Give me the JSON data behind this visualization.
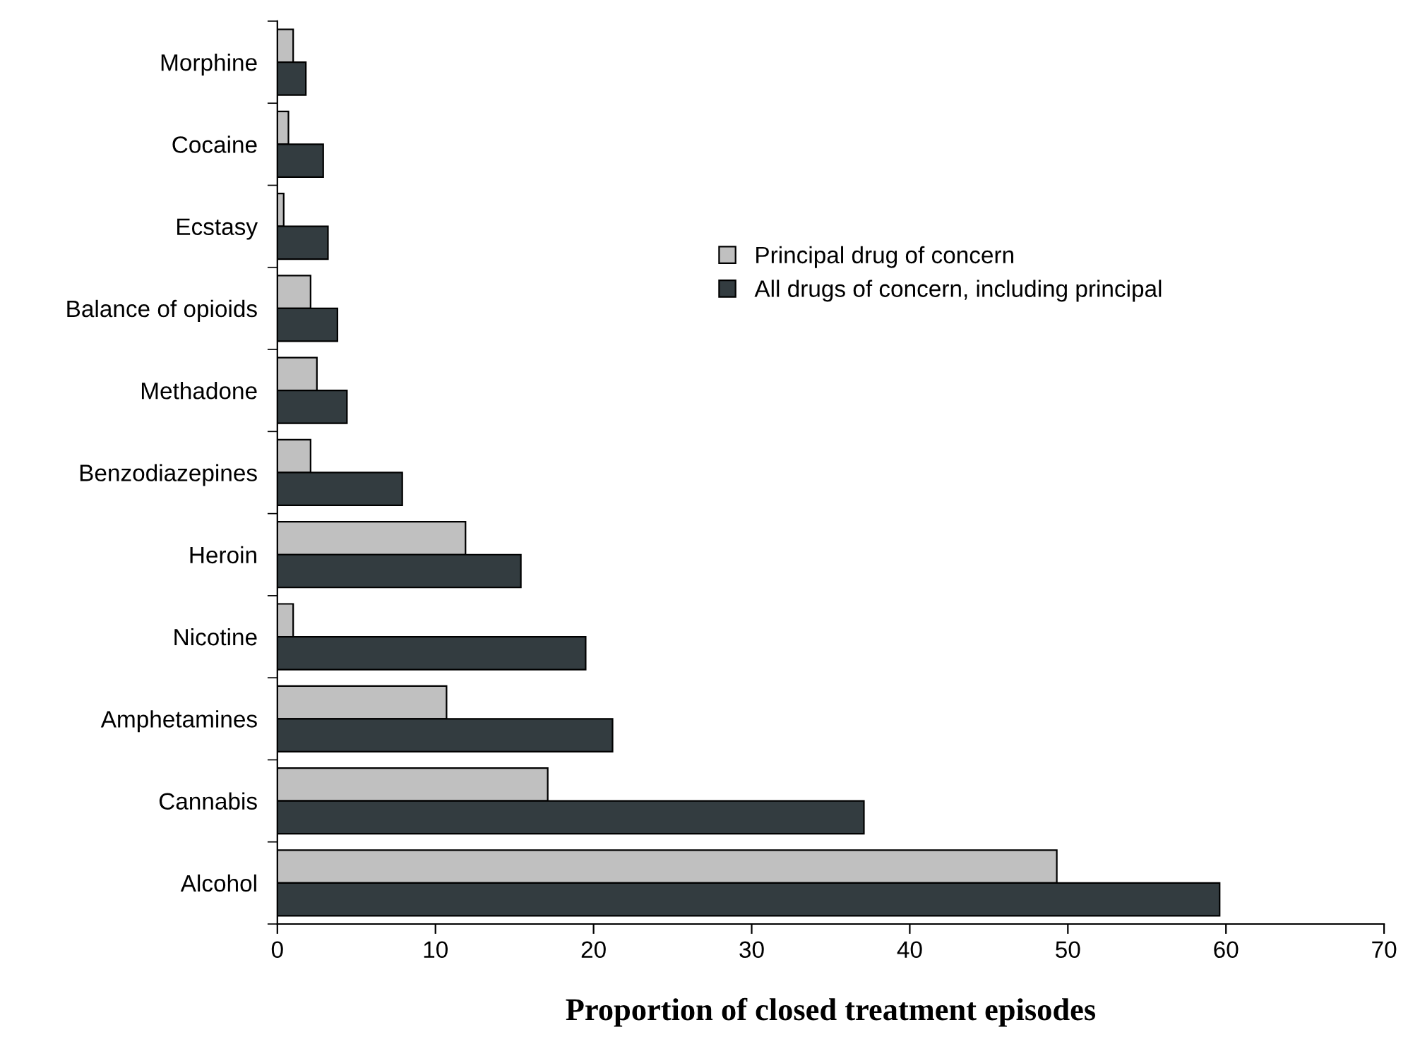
{
  "chart_data": {
    "type": "bar",
    "orientation": "horizontal",
    "xlabel": "Proportion of closed treatment episodes",
    "categories": [
      "Morphine",
      "Cocaine",
      "Ecstasy",
      "Balance of opioids",
      "Methadone",
      "Benzodiazepines",
      "Heroin",
      "Nicotine",
      "Amphetamines",
      "Cannabis",
      "Alcohol"
    ],
    "series": [
      {
        "name": "Principal drug of concern",
        "color": "#c0c0c0",
        "values": [
          1.0,
          0.7,
          0.4,
          2.1,
          2.5,
          2.1,
          11.9,
          1.0,
          10.7,
          17.1,
          49.3
        ]
      },
      {
        "name": "All drugs of concern, including principal",
        "color": "#333c40",
        "values": [
          1.8,
          2.9,
          3.2,
          3.8,
          4.4,
          7.9,
          15.4,
          19.5,
          21.2,
          37.1,
          59.6
        ]
      }
    ],
    "xlim": [
      0,
      70
    ],
    "xticks": [
      0,
      10,
      20,
      30,
      40,
      50,
      60,
      70
    ],
    "grid": false,
    "legend": "right"
  }
}
